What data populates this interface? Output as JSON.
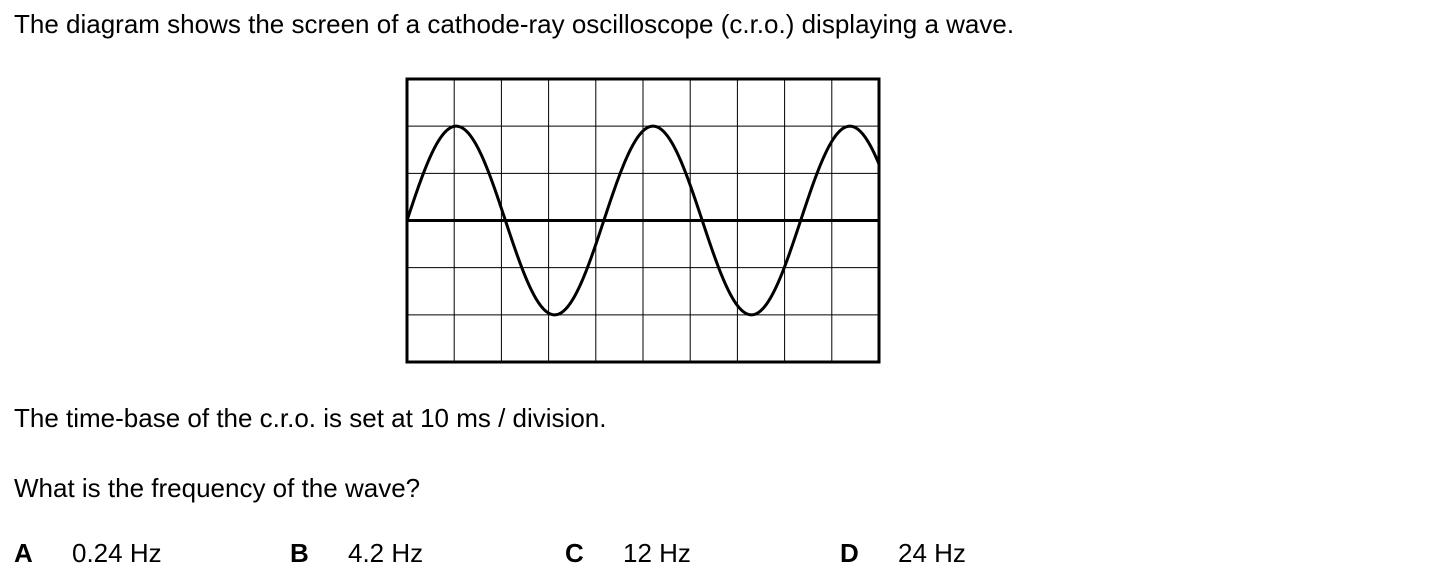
{
  "intro_text": "The diagram shows the screen of a cathode-ray oscilloscope (c.r.o.) displaying a wave.",
  "timebase_text": "The time-base of the c.r.o. is set at 10 ms / division.",
  "question_text": "What is the frequency of the wave?",
  "options": [
    {
      "letter": "A",
      "value": "0.24 Hz"
    },
    {
      "letter": "B",
      "value": "4.2 Hz"
    },
    {
      "letter": "C",
      "value": "12 Hz"
    },
    {
      "letter": "D",
      "value": "24 Hz"
    }
  ],
  "screen": {
    "divisions_x": 10,
    "divisions_y": 6,
    "wave": {
      "amplitude_divisions": 2,
      "period_divisions": 4.17,
      "start_phase": "rising-zero"
    }
  }
}
